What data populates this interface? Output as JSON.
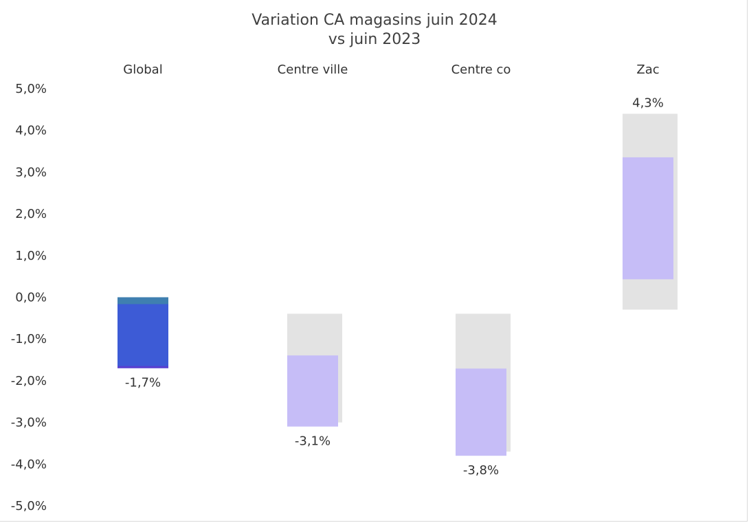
{
  "chart_data": {
    "type": "bar",
    "title": [
      "Variation CA magasins juin 2024",
      "vs juin 2023"
    ],
    "categories": [
      "Global",
      "Centre ville",
      "Centre co",
      "Zac"
    ],
    "values": [
      -1.7,
      -3.1,
      -3.8,
      4.3
    ],
    "data_labels": [
      "-1,7%",
      "-3,1%",
      "-3,8%",
      "4,3%"
    ],
    "ylim": [
      -5,
      5
    ],
    "yticks": [
      "5,0%",
      "4,0%",
      "3,0%",
      "2,0%",
      "1,0%",
      "0,0%",
      "-1,0%",
      "-2,0%",
      "-3,0%",
      "-4,0%",
      "-5,0%"
    ],
    "category_labels_position": "top",
    "grid": false,
    "legend": "none",
    "colors": {
      "highlight_bar": "#3d5bd6",
      "highlight_bar_top": "#3f7fb0",
      "faded_bar": "#c6bdf7",
      "faded_shadow": "#e3e3e3",
      "text": "#333333"
    },
    "highlighted_category": "Global"
  }
}
